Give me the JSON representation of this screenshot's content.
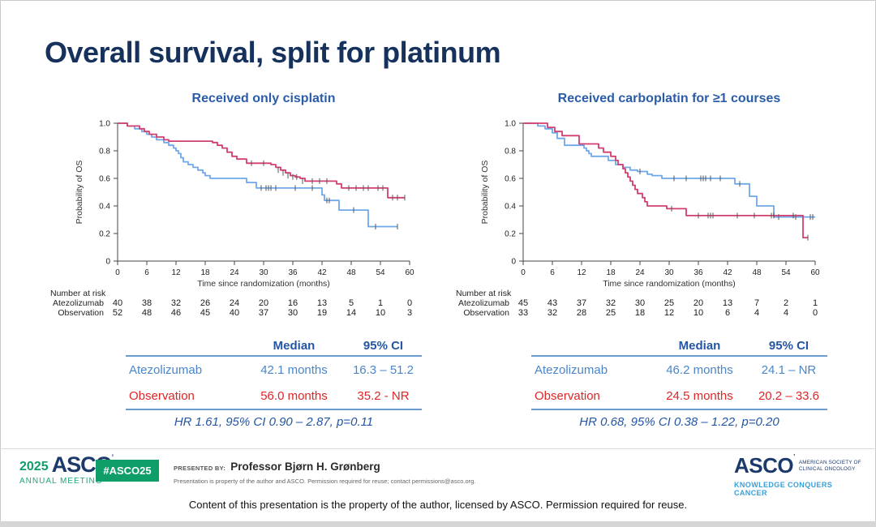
{
  "slide": {
    "title": "Overall survival, split for platinum",
    "disclaimer": "Content of this presentation is the property of the author, licensed by ASCO. Permission required for reuse."
  },
  "colors": {
    "title_navy": "#16325c",
    "chart_title_blue": "#2a5caa",
    "atezolizumab_blue": "#6fa8ea",
    "observation_red": "#d23f6e",
    "stats_blue_text": "#4a86c8",
    "stats_red_text": "#de2626",
    "stats_header_navy": "#2456a4",
    "table_rule_blue": "#6b9bd2",
    "asco_green": "#0f9d68",
    "asco_navy": "#1b3a6b",
    "asco_light_blue": "#3a9fd8"
  },
  "chart_data": [
    {
      "type": "line",
      "subtype": "kaplan-meier",
      "title": "Received only cisplatin",
      "xlabel": "Time since randomization (months)",
      "ylabel": "Probability of OS",
      "xlim": [
        0,
        60
      ],
      "ylim": [
        0,
        1
      ],
      "xticks": [
        0,
        6,
        12,
        18,
        24,
        30,
        36,
        42,
        48,
        54,
        60
      ],
      "yticks": [
        {
          "v": 1.0,
          "label": "1.0"
        },
        {
          "v": 0.8,
          "label": "0.8"
        },
        {
          "v": 0.6,
          "label": "0.6"
        },
        {
          "v": 0.4,
          "label": "0.4"
        },
        {
          "v": 0.2,
          "label": "0.2"
        },
        {
          "v": 0.0,
          "label": "0"
        }
      ],
      "series": [
        {
          "name": "Atezolizumab",
          "color": "#6fa8ea",
          "points": [
            [
              0,
              1.0
            ],
            [
              2,
              0.98
            ],
            [
              3.5,
              0.96
            ],
            [
              5,
              0.94
            ],
            [
              6,
              0.92
            ],
            [
              7,
              0.9
            ],
            [
              8,
              0.88
            ],
            [
              9.5,
              0.86
            ],
            [
              10.5,
              0.84
            ],
            [
              11.5,
              0.82
            ],
            [
              12,
              0.8
            ],
            [
              12.5,
              0.78
            ],
            [
              13,
              0.75
            ],
            [
              13.5,
              0.72
            ],
            [
              14.5,
              0.7
            ],
            [
              15.5,
              0.68
            ],
            [
              16.5,
              0.66
            ],
            [
              17.5,
              0.64
            ],
            [
              18,
              0.62
            ],
            [
              19,
              0.6
            ],
            [
              26.5,
              0.57
            ],
            [
              28.5,
              0.53
            ],
            [
              42,
              0.48
            ],
            [
              42.5,
              0.44
            ],
            [
              45.5,
              0.37
            ],
            [
              51.5,
              0.25
            ],
            [
              57.5,
              0.25
            ]
          ],
          "censors": [
            [
              29.5,
              0.53
            ],
            [
              30.5,
              0.53
            ],
            [
              31,
              0.53
            ],
            [
              31.5,
              0.53
            ],
            [
              32.5,
              0.53
            ],
            [
              36.5,
              0.53
            ],
            [
              40,
              0.53
            ],
            [
              43,
              0.44
            ],
            [
              43.5,
              0.44
            ],
            [
              48.5,
              0.37
            ],
            [
              53,
              0.25
            ],
            [
              57.5,
              0.25
            ]
          ]
        },
        {
          "name": "Observation",
          "color": "#d23f6e",
          "points": [
            [
              0,
              1.0
            ],
            [
              2,
              0.98
            ],
            [
              4.5,
              0.96
            ],
            [
              5.5,
              0.94
            ],
            [
              6.5,
              0.92
            ],
            [
              8,
              0.9
            ],
            [
              9.5,
              0.88
            ],
            [
              10.5,
              0.87
            ],
            [
              19.5,
              0.86
            ],
            [
              20.5,
              0.84
            ],
            [
              21.5,
              0.82
            ],
            [
              22.5,
              0.79
            ],
            [
              23.5,
              0.76
            ],
            [
              24.5,
              0.74
            ],
            [
              26.5,
              0.71
            ],
            [
              31.5,
              0.7
            ],
            [
              32.5,
              0.68
            ],
            [
              33.5,
              0.66
            ],
            [
              34.5,
              0.64
            ],
            [
              35.5,
              0.62
            ],
            [
              36.5,
              0.61
            ],
            [
              37.5,
              0.6
            ],
            [
              38.5,
              0.58
            ],
            [
              45,
              0.56
            ],
            [
              46,
              0.53
            ],
            [
              55.5,
              0.46
            ],
            [
              59,
              0.46
            ]
          ],
          "censors": [
            [
              27.5,
              0.71
            ],
            [
              30,
              0.71
            ],
            [
              33,
              0.66
            ],
            [
              34,
              0.64
            ],
            [
              35,
              0.62
            ],
            [
              36,
              0.61
            ],
            [
              36.8,
              0.61
            ],
            [
              38,
              0.58
            ],
            [
              40,
              0.58
            ],
            [
              41.5,
              0.58
            ],
            [
              43,
              0.58
            ],
            [
              47.5,
              0.53
            ],
            [
              49,
              0.53
            ],
            [
              50.5,
              0.53
            ],
            [
              51.5,
              0.53
            ],
            [
              53.5,
              0.53
            ],
            [
              54.5,
              0.53
            ],
            [
              56.5,
              0.46
            ],
            [
              57.5,
              0.46
            ],
            [
              59,
              0.46
            ]
          ]
        }
      ],
      "risk_table": {
        "label": "Number at risk",
        "rows": [
          {
            "name": "Atezolizumab",
            "values": [
              40,
              38,
              32,
              26,
              24,
              20,
              16,
              13,
              5,
              1,
              0
            ]
          },
          {
            "name": "Observation",
            "values": [
              52,
              48,
              46,
              45,
              40,
              37,
              30,
              19,
              14,
              10,
              3
            ]
          }
        ]
      },
      "stats": {
        "headers": [
          "Median",
          "95% CI"
        ],
        "rows": [
          {
            "name": "Atezolizumab",
            "median": "42.1 months",
            "ci": "16.3 – 51.2"
          },
          {
            "name": "Observation",
            "median": "56.0 months",
            "ci": "35.2 - NR"
          }
        ],
        "hr_line": "HR 1.61, 95% CI 0.90 – 2.87, p=0.11"
      }
    },
    {
      "type": "line",
      "subtype": "kaplan-meier",
      "title": "Received carboplatin for ≥1 courses",
      "xlabel": "Time since randomization (months)",
      "ylabel": "Probability of OS",
      "xlim": [
        0,
        60
      ],
      "ylim": [
        0,
        1
      ],
      "xticks": [
        0,
        6,
        12,
        18,
        24,
        30,
        36,
        42,
        48,
        54,
        60
      ],
      "yticks": [
        {
          "v": 1.0,
          "label": "1.0"
        },
        {
          "v": 0.8,
          "label": "0.8"
        },
        {
          "v": 0.6,
          "label": "0.6"
        },
        {
          "v": 0.4,
          "label": "0.4"
        },
        {
          "v": 0.2,
          "label": "0.2"
        },
        {
          "v": 0.0,
          "label": "0"
        }
      ],
      "series": [
        {
          "name": "Atezolizumab",
          "color": "#6fa8ea",
          "points": [
            [
              0,
              1.0
            ],
            [
              3,
              0.98
            ],
            [
              4.5,
              0.96
            ],
            [
              6,
              0.93
            ],
            [
              7,
              0.89
            ],
            [
              8.5,
              0.84
            ],
            [
              12.5,
              0.82
            ],
            [
              13,
              0.8
            ],
            [
              13.5,
              0.78
            ],
            [
              14,
              0.76
            ],
            [
              17.5,
              0.73
            ],
            [
              19,
              0.7
            ],
            [
              20.5,
              0.68
            ],
            [
              22,
              0.66
            ],
            [
              23.5,
              0.65
            ],
            [
              25.5,
              0.63
            ],
            [
              26.5,
              0.62
            ],
            [
              28.5,
              0.6
            ],
            [
              43.5,
              0.56
            ],
            [
              46.5,
              0.47
            ],
            [
              48,
              0.4
            ],
            [
              51.5,
              0.32
            ],
            [
              60,
              0.32
            ]
          ],
          "censors": [
            [
              24,
              0.65
            ],
            [
              31,
              0.6
            ],
            [
              33.5,
              0.6
            ],
            [
              36.5,
              0.6
            ],
            [
              37,
              0.6
            ],
            [
              37.5,
              0.6
            ],
            [
              38.5,
              0.6
            ],
            [
              40.5,
              0.6
            ],
            [
              44.5,
              0.56
            ],
            [
              52.5,
              0.32
            ],
            [
              56,
              0.32
            ],
            [
              59,
              0.32
            ],
            [
              59.5,
              0.32
            ]
          ]
        },
        {
          "name": "Observation",
          "color": "#d23f6e",
          "points": [
            [
              0,
              1.0
            ],
            [
              5,
              0.97
            ],
            [
              6.5,
              0.94
            ],
            [
              8,
              0.91
            ],
            [
              11.5,
              0.85
            ],
            [
              15.5,
              0.82
            ],
            [
              16.5,
              0.79
            ],
            [
              18,
              0.76
            ],
            [
              19,
              0.73
            ],
            [
              19.5,
              0.7
            ],
            [
              20.5,
              0.67
            ],
            [
              21,
              0.64
            ],
            [
              21.5,
              0.61
            ],
            [
              22,
              0.58
            ],
            [
              22.5,
              0.55
            ],
            [
              23,
              0.52
            ],
            [
              23.5,
              0.49
            ],
            [
              24.5,
              0.46
            ],
            [
              25,
              0.43
            ],
            [
              25.5,
              0.4
            ],
            [
              29.5,
              0.38
            ],
            [
              33.5,
              0.33
            ],
            [
              57.5,
              0.17
            ],
            [
              58.5,
              0.17
            ]
          ],
          "censors": [
            [
              30.5,
              0.38
            ],
            [
              36,
              0.33
            ],
            [
              38,
              0.33
            ],
            [
              38.5,
              0.33
            ],
            [
              39,
              0.33
            ],
            [
              44,
              0.33
            ],
            [
              47.5,
              0.33
            ],
            [
              51,
              0.33
            ],
            [
              51.5,
              0.33
            ],
            [
              55.5,
              0.33
            ],
            [
              58.5,
              0.17
            ]
          ]
        }
      ],
      "risk_table": {
        "label": "Number at risk",
        "rows": [
          {
            "name": "Atezolizumab",
            "values": [
              45,
              43,
              37,
              32,
              30,
              25,
              20,
              13,
              7,
              2,
              1
            ]
          },
          {
            "name": "Observation",
            "values": [
              33,
              32,
              28,
              25,
              18,
              12,
              10,
              6,
              4,
              4,
              0
            ]
          }
        ]
      },
      "stats": {
        "headers": [
          "Median",
          "95% CI"
        ],
        "rows": [
          {
            "name": "Atezolizumab",
            "median": "46.2 months",
            "ci": "24.1 – NR"
          },
          {
            "name": "Observation",
            "median": "24.5 months",
            "ci": "20.2 – 33.6"
          }
        ],
        "hr_line": "HR 0.68, 95% CI 0.38 – 1.22, p=0.20"
      }
    }
  ],
  "footer": {
    "meeting_year": "2025",
    "meeting_name": "ASCO",
    "meeting_mark": "’",
    "meeting_sub": "ANNUAL MEETING",
    "hashtag": "#ASCO25",
    "presented_by_label": "PRESENTED BY:",
    "presenter": "Professor Bjørn H. Grønberg",
    "presenter_note": "Presentation is property of the author and ASCO. Permission required for reuse; contact permissions@asco.org.",
    "asco_logo_text": "ASCO",
    "asco_logo_mark": "’",
    "asco_society_line1": "AMERICAN SOCIETY OF",
    "asco_society_line2": "CLINICAL ONCOLOGY",
    "asco_tagline": "KNOWLEDGE CONQUERS CANCER"
  }
}
